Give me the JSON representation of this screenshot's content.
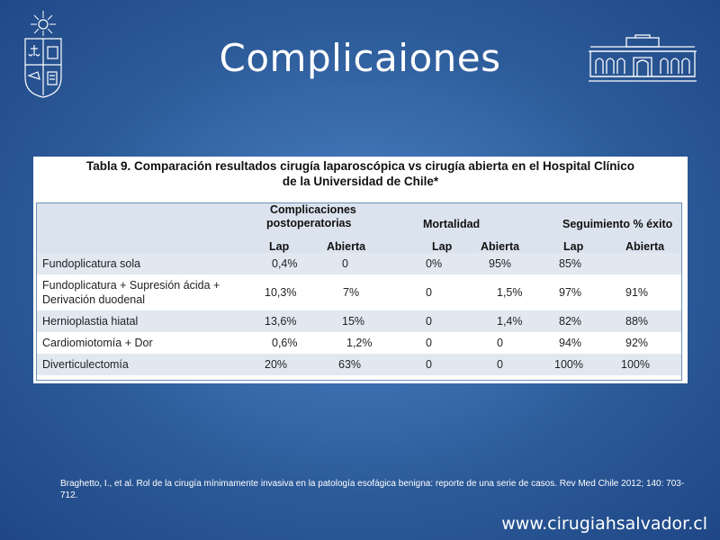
{
  "slide": {
    "title": "Complicaiones",
    "website": "www.cirugiahsalvador.cl",
    "citation": "Braghetto, I., et al. Rol de la cirugía mínimamente invasiva en la patología esofágica benigna: reporte de una serie de casos. Rev Med Chile 2012; 140: 703-712."
  },
  "table": {
    "caption_line1": "Tabla 9. Comparación resultados cirugía laparoscópica vs cirugía abierta en el Hospital Clínico",
    "caption_line2": "de la Universidad de Chile*",
    "groups": {
      "complicaciones_1": "Complicaciones",
      "complicaciones_2": "postoperatorias",
      "mortalidad": "Mortalidad",
      "seguimiento": "Seguimiento % éxito"
    },
    "subheaders": [
      "Lap",
      "Abierta",
      "Lap",
      "Abierta",
      "Lap",
      "Abierta"
    ],
    "rows": [
      {
        "procedure": "Fundoplicatura sola",
        "cells": [
          "0,4%",
          "0",
          "0%",
          "95%",
          "85%",
          ""
        ]
      },
      {
        "procedure_line1": "Fundoplicatura + Supresión ácida +",
        "procedure_line2": "Derivación duodenal",
        "cells": [
          "10,3%",
          "7%",
          "0",
          "1,5%",
          "97%",
          "91%"
        ]
      },
      {
        "procedure": "Hernioplastia hiatal",
        "cells": [
          "13,6%",
          "15%",
          "0",
          "1,4%",
          "82%",
          "88%"
        ]
      },
      {
        "procedure": "Cardiomiotomía + Dor",
        "cells": [
          "0,6%",
          "1,2%",
          "0",
          "0",
          "94%",
          "92%"
        ]
      },
      {
        "procedure": "Diverticulectomía",
        "cells": [
          "20%",
          "63%",
          "0",
          "0",
          "100%",
          "100%"
        ]
      }
    ]
  },
  "icons": {
    "left_logo": "university-crest-icon",
    "right_logo": "hospital-building-icon"
  }
}
